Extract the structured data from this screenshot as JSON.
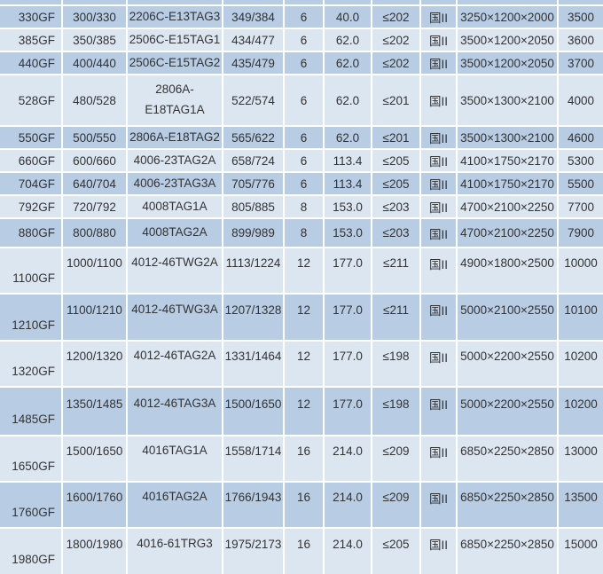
{
  "colors": {
    "row_dark": "#b8cce4",
    "row_light": "#dce6f1",
    "gridline": "#ffffff",
    "text": "#333333"
  },
  "table": {
    "rows": [
      {
        "model": "330GF",
        "power_kw": "300/330",
        "engine": "2206C-E13TAG3",
        "power_kva": "349/384",
        "cylinders": "6",
        "displacement": "40.0",
        "noise": "≤202",
        "emission": "国II",
        "dimensions": "3250×1200×2000",
        "weight": "3500"
      },
      {
        "model": "385GF",
        "power_kw": "350/385",
        "engine": "2506C-E15TAG1",
        "power_kva": "434/477",
        "cylinders": "6",
        "displacement": "62.0",
        "noise": "≤202",
        "emission": "国II",
        "dimensions": "3500×1200×2050",
        "weight": "3600"
      },
      {
        "model": "440GF",
        "power_kw": "400/440",
        "engine": "2506C-E15TAG2",
        "power_kva": "435/479",
        "cylinders": "6",
        "displacement": "62.0",
        "noise": "≤202",
        "emission": "国II",
        "dimensions": "3500×1200×2050",
        "weight": "3700"
      },
      {
        "model": "528GF",
        "power_kw": "480/528",
        "engine": "2806A-\nE18TAG1A",
        "power_kva": "522/574",
        "cylinders": "6",
        "displacement": "62.0",
        "noise": "≤201",
        "emission": "国II",
        "dimensions": "3500×1300×2100",
        "weight": "4000"
      },
      {
        "model": "550GF",
        "power_kw": "500/550",
        "engine": "2806A-E18TAG2",
        "power_kva": "565/622",
        "cylinders": "6",
        "displacement": "62.0",
        "noise": "≤201",
        "emission": "国II",
        "dimensions": "3500×1300×2100",
        "weight": "4600"
      },
      {
        "model": "660GF",
        "power_kw": "600/660",
        "engine": "4006-23TAG2A",
        "power_kva": "658/724",
        "cylinders": "6",
        "displacement": "113.4",
        "noise": "≤205",
        "emission": "国II",
        "dimensions": "4100×1750×2170",
        "weight": "5300"
      },
      {
        "model": "704GF",
        "power_kw": "640/704",
        "engine": "4006-23TAG3A",
        "power_kva": "705/776",
        "cylinders": "6",
        "displacement": "113.4",
        "noise": "≤205",
        "emission": "国II",
        "dimensions": "4100×1750×2170",
        "weight": "5500"
      },
      {
        "model": "792GF",
        "power_kw": "720/792",
        "engine": "4008TAG1A",
        "power_kva": "805/885",
        "cylinders": "8",
        "displacement": "153.0",
        "noise": "≤203",
        "emission": "国II",
        "dimensions": "4700×2100×2250",
        "weight": "7700"
      },
      {
        "model": "880GF",
        "power_kw": "800/880",
        "engine": "4008TAG2A",
        "power_kva": "899/989",
        "cylinders": "8",
        "displacement": "153.0",
        "noise": "≤203",
        "emission": "国II",
        "dimensions": "4700×2100×2250",
        "weight": "7900"
      },
      {
        "model": "1100GF",
        "power_kw": "1000/1100",
        "engine": "4012-46TWG2A",
        "power_kva": "1113/1224",
        "cylinders": "12",
        "displacement": "177.0",
        "noise": "≤211",
        "emission": "国II",
        "dimensions": "4900×1800×2500",
        "weight": "10000"
      },
      {
        "model": "1210GF",
        "power_kw": "1100/1210",
        "engine": "4012-46TWG3A",
        "power_kva": "1207/1328",
        "cylinders": "12",
        "displacement": "177.0",
        "noise": "≤211",
        "emission": "国II",
        "dimensions": "5000×2100×2550",
        "weight": "10100"
      },
      {
        "model": "1320GF",
        "power_kw": "1200/1320",
        "engine": "4012-46TAG2A",
        "power_kva": "1331/1464",
        "cylinders": "12",
        "displacement": "177.0",
        "noise": "≤198",
        "emission": "国II",
        "dimensions": "5000×2200×2550",
        "weight": "10200"
      },
      {
        "model": "1485GF",
        "power_kw": "1350/1485",
        "engine": "4012-46TAG3A",
        "power_kva": "1500/1650",
        "cylinders": "12",
        "displacement": "177.0",
        "noise": "≤198",
        "emission": "国II",
        "dimensions": "5000×2200×2550",
        "weight": "10200"
      },
      {
        "model": "1650GF",
        "power_kw": "1500/1650",
        "engine": "4016TAG1A",
        "power_kva": "1558/1714",
        "cylinders": "16",
        "displacement": "214.0",
        "noise": "≤209",
        "emission": "国II",
        "dimensions": "6850×2250×2850",
        "weight": "13000"
      },
      {
        "model": "1760GF",
        "power_kw": "1600/1760",
        "engine": "4016TAG2A",
        "power_kva": "1766/1943",
        "cylinders": "16",
        "displacement": "214.0",
        "noise": "≤209",
        "emission": "国II",
        "dimensions": "6850×2250×2850",
        "weight": "13500"
      },
      {
        "model": "1980GF",
        "power_kw": "1800/1980",
        "engine": "4016-61TRG3",
        "power_kva": "1975/2173",
        "cylinders": "16",
        "displacement": "214.0",
        "noise": "≤205",
        "emission": "国II",
        "dimensions": "6850×2250×2850",
        "weight": "15000"
      }
    ]
  }
}
